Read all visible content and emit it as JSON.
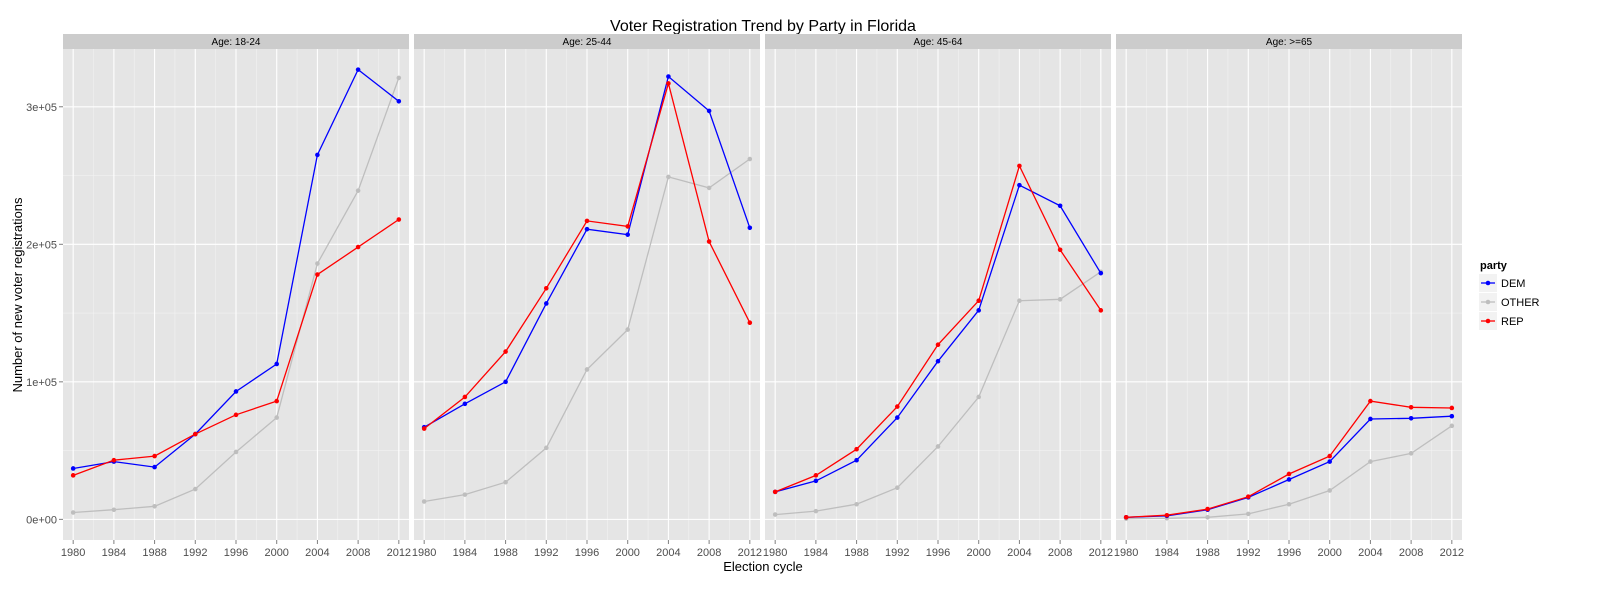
{
  "chart_data": {
    "type": "line",
    "title": "Voter Registration Trend by Party in Florida",
    "xlabel": "Election cycle",
    "ylabel": "Number of new voter registrations",
    "x": [
      1980,
      1984,
      1988,
      1992,
      1996,
      2000,
      2004,
      2008,
      2012
    ],
    "x_ticks": [
      "1980",
      "1984",
      "1988",
      "1992",
      "1996",
      "2000",
      "2004",
      "2008",
      "2012"
    ],
    "xlim": [
      1979,
      2013
    ],
    "ylim": [
      -15000,
      342000
    ],
    "y_ticks": [
      {
        "value": 0,
        "label": "0e+00"
      },
      {
        "value": 100000,
        "label": "1e+05"
      },
      {
        "value": 200000,
        "label": "2e+05"
      },
      {
        "value": 300000,
        "label": "3e+05"
      }
    ],
    "grid": true,
    "legend": {
      "title": "party",
      "placement": "right",
      "entries": [
        "DEM",
        "OTHER",
        "REP"
      ]
    },
    "colors": {
      "DEM": "#0000ff",
      "OTHER": "#bebebe",
      "REP": "#ff0000",
      "panel_bg": "#e5e5e5",
      "strip_bg": "#cccccc",
      "grid": "#ffffff"
    },
    "facets": [
      {
        "strip": "Age: 18-24",
        "series": [
          {
            "name": "DEM",
            "values": [
              37000,
              42000,
              38000,
              62000,
              93000,
              113000,
              265000,
              327000,
              304000
            ]
          },
          {
            "name": "OTHER",
            "values": [
              5000,
              7000,
              9500,
              22000,
              49000,
              74000,
              186000,
              239000,
              321000
            ]
          },
          {
            "name": "REP",
            "values": [
              32000,
              43000,
              46000,
              62000,
              76000,
              86000,
              178000,
              198000,
              218000
            ]
          }
        ]
      },
      {
        "strip": "Age: 25-44",
        "series": [
          {
            "name": "DEM",
            "values": [
              67000,
              84000,
              100000,
              157000,
              211000,
              207000,
              322000,
              297000,
              212000
            ]
          },
          {
            "name": "OTHER",
            "values": [
              13000,
              18000,
              27000,
              52000,
              109000,
              138000,
              249000,
              241000,
              262000
            ]
          },
          {
            "name": "REP",
            "values": [
              66000,
              89000,
              122000,
              168000,
              217000,
              213000,
              317000,
              202000,
              143000
            ]
          }
        ]
      },
      {
        "strip": "Age: 45-64",
        "series": [
          {
            "name": "DEM",
            "values": [
              20000,
              28000,
              43000,
              74000,
              115000,
              152000,
              243000,
              228000,
              179000
            ]
          },
          {
            "name": "OTHER",
            "values": [
              3500,
              6000,
              11000,
              23000,
              53000,
              89000,
              159000,
              160000,
              180000
            ]
          },
          {
            "name": "REP",
            "values": [
              20000,
              32000,
              51000,
              82000,
              127000,
              159000,
              257000,
              196000,
              152000
            ]
          }
        ]
      },
      {
        "strip": "Age: >=65",
        "series": [
          {
            "name": "DEM",
            "values": [
              1500,
              2500,
              7000,
              16000,
              29000,
              42000,
              73000,
              73500,
              75000
            ]
          },
          {
            "name": "OTHER",
            "values": [
              500,
              800,
              1500,
              4000,
              11000,
              21000,
              42000,
              48000,
              68000
            ]
          },
          {
            "name": "REP",
            "values": [
              1500,
              3000,
              7500,
              16500,
              33000,
              46000,
              86000,
              81500,
              81000
            ]
          }
        ]
      }
    ]
  }
}
